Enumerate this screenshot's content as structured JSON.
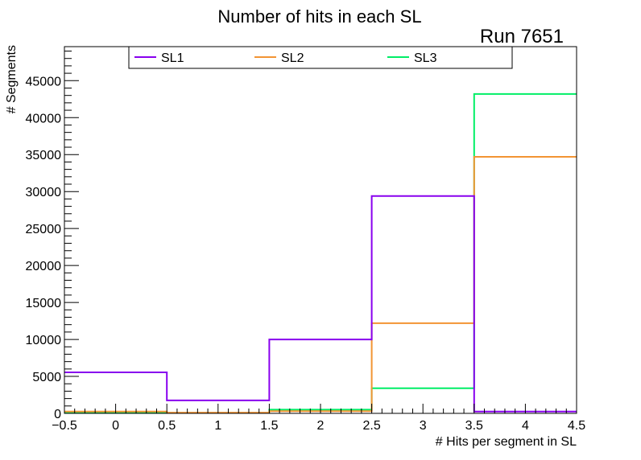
{
  "chart_data": {
    "type": "step-histogram",
    "title": "Number of hits in each SL",
    "annotation": "Run 7651",
    "xlabel": "# Hits per segment in SL",
    "ylabel": "# Segments",
    "xlim": [
      -0.5,
      4.5
    ],
    "ylim": [
      0,
      49600
    ],
    "x_ticks": [
      {
        "value": -0.5,
        "label": "−0.5"
      },
      {
        "value": 0,
        "label": "0"
      },
      {
        "value": 0.5,
        "label": "0.5"
      },
      {
        "value": 1,
        "label": "1"
      },
      {
        "value": 1.5,
        "label": "1.5"
      },
      {
        "value": 2,
        "label": "2"
      },
      {
        "value": 2.5,
        "label": "2.5"
      },
      {
        "value": 3,
        "label": "3"
      },
      {
        "value": 3.5,
        "label": "3.5"
      },
      {
        "value": 4,
        "label": "4"
      },
      {
        "value": 4.5,
        "label": "4.5"
      }
    ],
    "y_ticks": [
      {
        "value": 0,
        "label": "0"
      },
      {
        "value": 5000,
        "label": "5000"
      },
      {
        "value": 10000,
        "label": "10000"
      },
      {
        "value": 15000,
        "label": "15000"
      },
      {
        "value": 20000,
        "label": "20000"
      },
      {
        "value": 25000,
        "label": "25000"
      },
      {
        "value": 30000,
        "label": "30000"
      },
      {
        "value": 35000,
        "label": "35000"
      },
      {
        "value": 40000,
        "label": "40000"
      },
      {
        "value": 45000,
        "label": "45000"
      }
    ],
    "bin_edges": [
      -0.5,
      0.5,
      1.5,
      2.5,
      3.5,
      4.5
    ],
    "series": [
      {
        "name": "SL1",
        "color": "#8800ee",
        "values": [
          5550,
          1750,
          10000,
          29400,
          250
        ]
      },
      {
        "name": "SL2",
        "color": "#f29433",
        "values": [
          250,
          100,
          300,
          12200,
          34700
        ]
      },
      {
        "name": "SL3",
        "color": "#00ee66",
        "values": [
          100,
          50,
          500,
          3400,
          43200
        ]
      }
    ],
    "legend": {
      "placement": "top",
      "entries": [
        "SL1",
        "SL2",
        "SL3"
      ]
    },
    "grid": false
  }
}
